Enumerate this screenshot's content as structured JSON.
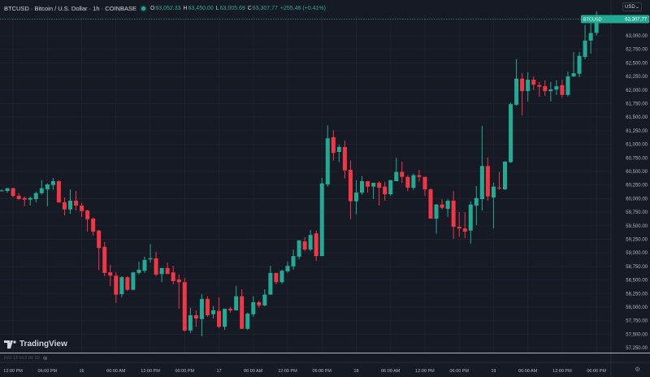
{
  "header": {
    "symbol_title": "BTCUSD · Bitcoin / U.S. Dollar · 1h · COINBASE",
    "status_dot_color": "#22ab94",
    "ohlc": {
      "o_label": "O",
      "o": "63,052.33",
      "h_label": "H",
      "h": "63,450.00",
      "l_label": "L",
      "l": "63,005.69",
      "c_label": "C",
      "c": "63,307.77",
      "change": "+255.46 (+0.41%)"
    }
  },
  "currency_select": {
    "value": "USD"
  },
  "price_tag": {
    "symbol": "BTCUSD",
    "price": "63,307.77"
  },
  "logo": {
    "text": "TradingView"
  },
  "indicator": {
    "label": "RSI 13 hlc3 80 20"
  },
  "colors": {
    "up": "#22ab94",
    "down": "#f23645",
    "background": "#161a25",
    "grid": "#1f2330"
  },
  "chart_data": {
    "type": "candlestick",
    "interval": "1h",
    "last_price": 63307.77,
    "ylim": [
      57150,
      63450
    ],
    "grid": true,
    "price_ticks": [
      "63,000.00",
      "62,750.00",
      "62,500.00",
      "62,250.00",
      "62,000.00",
      "61,750.00",
      "61,500.00",
      "61,250.00",
      "61,000.00",
      "60,750.00",
      "60,500.00",
      "60,250.00",
      "60,000.00",
      "59,750.00",
      "59,500.00",
      "59,250.00",
      "59,000.00",
      "58,750.00",
      "58,500.00",
      "58,250.00",
      "58,000.00",
      "57,750.00",
      "57,500.00",
      "57,250.00"
    ],
    "time_ticks": [
      {
        "label": "12:00 PM",
        "candle": 2
      },
      {
        "label": "06:00 PM",
        "candle": 8
      },
      {
        "label": "16",
        "candle": 14
      },
      {
        "label": "06:00 AM",
        "candle": 20
      },
      {
        "label": "12:00 PM",
        "candle": 26
      },
      {
        "label": "06:00 PM",
        "candle": 32
      },
      {
        "label": "17",
        "candle": 38
      },
      {
        "label": "06:00 AM",
        "candle": 44
      },
      {
        "label": "12:00 PM",
        "candle": 50
      },
      {
        "label": "06:00 PM",
        "candle": 56
      },
      {
        "label": "18",
        "candle": 62
      },
      {
        "label": "06:00 AM",
        "candle": 68
      },
      {
        "label": "12:00 PM",
        "candle": 74
      },
      {
        "label": "06:00 PM",
        "candle": 80
      },
      {
        "label": "19",
        "candle": 86
      },
      {
        "label": "06:00 AM",
        "candle": 92
      },
      {
        "label": "12:00 PM",
        "candle": 98
      },
      {
        "label": "06:00 PM",
        "candle": 104
      }
    ],
    "ohlc": [
      [
        60140,
        60170,
        60130,
        60150
      ],
      [
        60140,
        60200,
        60110,
        60190
      ],
      [
        60190,
        60200,
        60020,
        60050
      ],
      [
        60050,
        60100,
        59980,
        59990
      ],
      [
        60010,
        60040,
        59860,
        59980
      ],
      [
        59980,
        60040,
        59870,
        60010
      ],
      [
        59990,
        60130,
        59930,
        60100
      ],
      [
        60100,
        60340,
        60070,
        60190
      ],
      [
        60170,
        60280,
        59860,
        60260
      ],
      [
        60250,
        60380,
        60160,
        60320
      ],
      [
        60320,
        60340,
        59920,
        59930
      ],
      [
        59930,
        60020,
        59690,
        59800
      ],
      [
        59800,
        60170,
        59720,
        59960
      ],
      [
        59960,
        60140,
        59780,
        59870
      ],
      [
        59870,
        59920,
        59660,
        59770
      ],
      [
        59780,
        59790,
        59390,
        59620
      ],
      [
        59630,
        59650,
        59320,
        59390
      ],
      [
        59410,
        59420,
        58680,
        59090
      ],
      [
        59110,
        59200,
        58570,
        58630
      ],
      [
        58640,
        58780,
        58390,
        58580
      ],
      [
        58580,
        58640,
        58080,
        58230
      ],
      [
        58240,
        58570,
        58180,
        58550
      ],
      [
        58550,
        58570,
        58300,
        58320
      ],
      [
        58320,
        58650,
        58310,
        58640
      ],
      [
        58630,
        58840,
        58600,
        58690
      ],
      [
        58670,
        58930,
        58630,
        58870
      ],
      [
        58880,
        59160,
        58820,
        58900
      ],
      [
        58900,
        59020,
        58570,
        58600
      ],
      [
        58610,
        58720,
        58460,
        58720
      ],
      [
        58720,
        58820,
        58610,
        58610
      ],
      [
        58640,
        58760,
        58420,
        58480
      ],
      [
        58510,
        58600,
        57970,
        58460
      ],
      [
        58460,
        58540,
        57550,
        57570
      ],
      [
        57570,
        57990,
        57520,
        57850
      ],
      [
        57850,
        57940,
        57640,
        57790
      ],
      [
        57780,
        58240,
        57460,
        58150
      ],
      [
        58150,
        58200,
        57820,
        57850
      ],
      [
        57870,
        58020,
        57790,
        57940
      ],
      [
        57930,
        58180,
        57610,
        57640
      ],
      [
        57640,
        57970,
        57580,
        57970
      ],
      [
        57970,
        58000,
        57900,
        57940
      ],
      [
        57940,
        58390,
        57940,
        58200
      ],
      [
        58200,
        58330,
        57600,
        57600
      ],
      [
        57600,
        57900,
        57580,
        57880
      ],
      [
        57870,
        58200,
        57820,
        58090
      ],
      [
        58090,
        58120,
        57990,
        58030
      ],
      [
        58030,
        58330,
        58020,
        58230
      ],
      [
        58230,
        58760,
        58230,
        58630
      ],
      [
        58630,
        58630,
        58420,
        58460
      ],
      [
        58460,
        58690,
        58430,
        58670
      ],
      [
        58660,
        58840,
        58630,
        58760
      ],
      [
        58750,
        59060,
        58690,
        58940
      ],
      [
        58930,
        59230,
        58880,
        59230
      ],
      [
        59210,
        59290,
        59030,
        59060
      ],
      [
        59060,
        59420,
        59030,
        59330
      ],
      [
        59360,
        59410,
        58850,
        58940
      ],
      [
        58940,
        60380,
        58940,
        60280
      ],
      [
        60260,
        61350,
        60220,
        61110
      ],
      [
        61130,
        61260,
        60700,
        60840
      ],
      [
        60860,
        60990,
        60670,
        60950
      ],
      [
        60950,
        61070,
        60370,
        60520
      ],
      [
        60530,
        60700,
        59620,
        59950
      ],
      [
        59950,
        60340,
        59710,
        60110
      ],
      [
        60110,
        60410,
        60070,
        60320
      ],
      [
        60320,
        60320,
        60110,
        60220
      ],
      [
        60220,
        60290,
        59990,
        60290
      ],
      [
        60290,
        60320,
        59870,
        60200
      ],
      [
        60220,
        60310,
        59960,
        60080
      ],
      [
        60080,
        60340,
        60050,
        60340
      ],
      [
        60320,
        60750,
        60320,
        60490
      ],
      [
        60490,
        60680,
        60290,
        60400
      ],
      [
        60400,
        60430,
        60140,
        60200
      ],
      [
        60200,
        60460,
        60160,
        60430
      ],
      [
        60430,
        60530,
        60310,
        60400
      ],
      [
        60400,
        60400,
        60050,
        60170
      ],
      [
        60170,
        60190,
        59630,
        59630
      ],
      [
        59630,
        59900,
        59350,
        59890
      ],
      [
        59890,
        59990,
        59800,
        59830
      ],
      [
        59810,
        59990,
        59660,
        59960
      ],
      [
        59960,
        60140,
        59260,
        59480
      ],
      [
        59480,
        59750,
        59300,
        59450
      ],
      [
        59450,
        59750,
        59270,
        59390
      ],
      [
        59410,
        59950,
        59170,
        59890
      ],
      [
        59870,
        60230,
        59510,
        60010
      ],
      [
        59990,
        61340,
        59780,
        60600
      ],
      [
        60600,
        60760,
        59960,
        60040
      ],
      [
        60020,
        60290,
        59450,
        60220
      ],
      [
        60200,
        60490,
        60160,
        60190
      ],
      [
        60170,
        60690,
        60160,
        60680
      ],
      [
        60670,
        61770,
        60660,
        61740
      ],
      [
        61730,
        62570,
        61710,
        62210
      ],
      [
        62210,
        62310,
        61530,
        61980
      ],
      [
        61980,
        62330,
        61790,
        62190
      ],
      [
        62190,
        62250,
        62000,
        62100
      ],
      [
        62090,
        62150,
        61880,
        62060
      ],
      [
        62070,
        62180,
        61890,
        61980
      ],
      [
        61980,
        62150,
        61790,
        62010
      ],
      [
        62010,
        62180,
        61910,
        62070
      ],
      [
        62090,
        62190,
        61860,
        61910
      ],
      [
        61910,
        62340,
        61880,
        62250
      ],
      [
        62250,
        62700,
        62240,
        62310
      ],
      [
        62300,
        62700,
        62240,
        62630
      ],
      [
        62610,
        63200,
        62570,
        62910
      ],
      [
        62910,
        63350,
        62670,
        63050
      ],
      [
        63052.33,
        63450,
        63005.69,
        63307.77
      ]
    ]
  }
}
